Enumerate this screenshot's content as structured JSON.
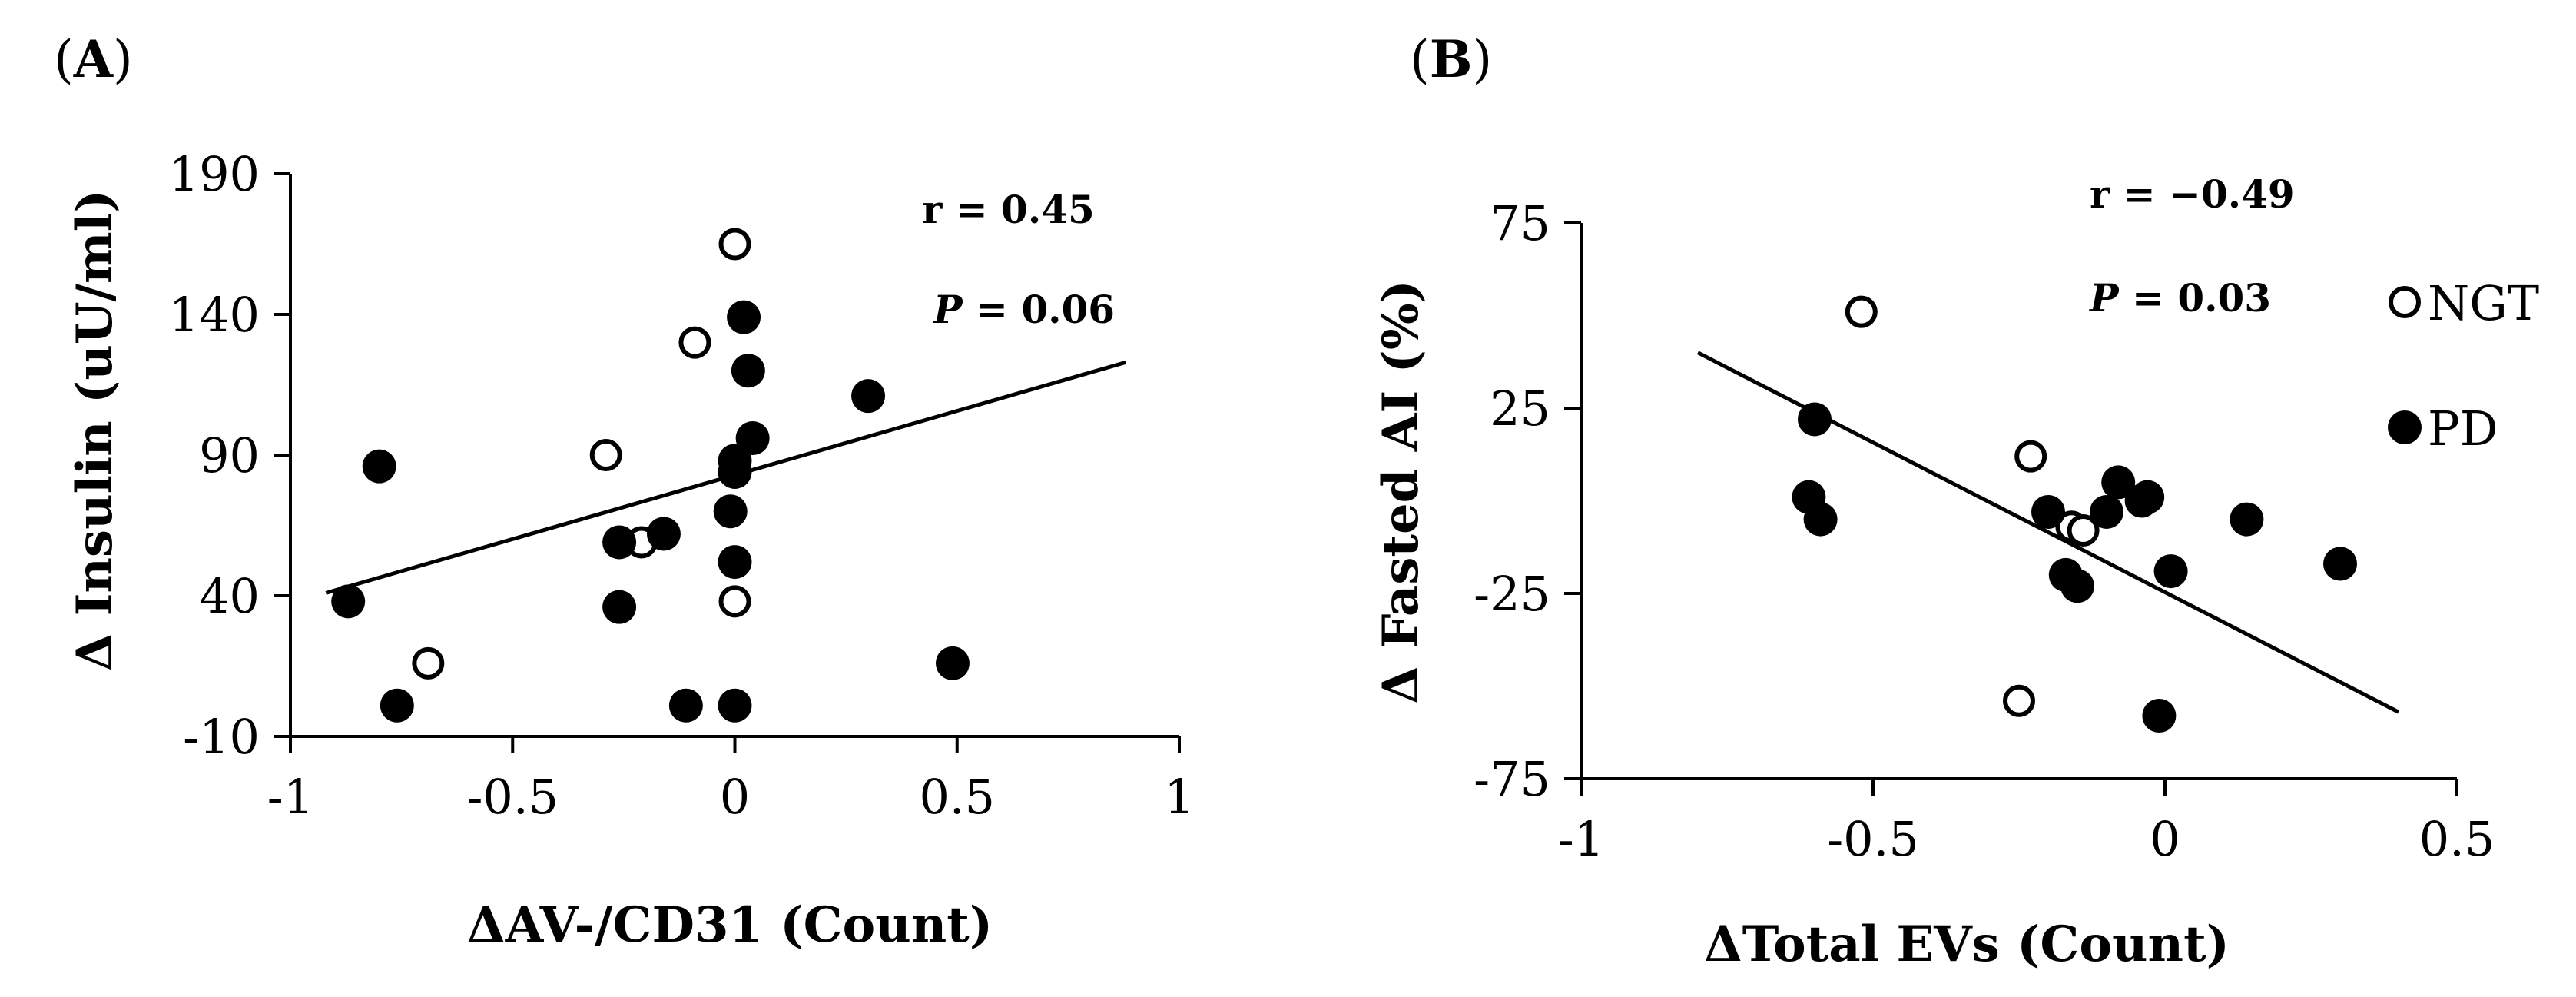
{
  "chart_data": [
    {
      "type": "scatter",
      "panel_label": "A",
      "title": "",
      "xlabel": "ΔAV-/CD31 (Count)",
      "ylabel": "Δ Insulin (uU/ml)",
      "xlim": [
        -1,
        1
      ],
      "ylim": [
        -10,
        190
      ],
      "xticks": [
        -1,
        -0.5,
        0,
        0.5,
        1
      ],
      "xtick_labels": [
        "-1",
        "-0.5",
        "0",
        "0.5",
        "1"
      ],
      "yticks": [
        -10,
        40,
        90,
        140,
        190
      ],
      "ytick_labels": [
        "-10",
        "40",
        "90",
        "140",
        "190"
      ],
      "annotations": {
        "r_text": "r = 0.45",
        "p_letter": "P",
        "p_rest": " = 0.06"
      },
      "trendline": {
        "x": [
          -0.92,
          0.88
        ],
        "y": [
          41,
          123
        ]
      },
      "series": [
        {
          "name": "NGT",
          "fill": "#ffffff",
          "points": [
            [
              0.0,
              165
            ],
            [
              -0.09,
              130
            ],
            [
              -0.29,
              90
            ],
            [
              -0.21,
              59
            ],
            [
              0.0,
              38
            ],
            [
              -0.69,
              16
            ]
          ]
        },
        {
          "name": "PD",
          "fill": "#000000",
          "points": [
            [
              0.02,
              139
            ],
            [
              0.03,
              120
            ],
            [
              0.3,
              111
            ],
            [
              0.04,
              96
            ],
            [
              0.0,
              88
            ],
            [
              0.0,
              84
            ],
            [
              -0.8,
              86
            ],
            [
              -0.01,
              70
            ],
            [
              -0.16,
              62
            ],
            [
              -0.26,
              59
            ],
            [
              0.0,
              52
            ],
            [
              -0.26,
              36
            ],
            [
              -0.87,
              38
            ],
            [
              0.49,
              16
            ],
            [
              -0.76,
              1
            ],
            [
              -0.11,
              1
            ],
            [
              0.0,
              1
            ]
          ]
        }
      ]
    },
    {
      "type": "scatter",
      "panel_label": "B",
      "title": "",
      "xlabel": "ΔTotal EVs (Count)",
      "ylabel": "Δ Fasted AI (%)",
      "xlim": [
        -1,
        0.5
      ],
      "ylim": [
        -75,
        75
      ],
      "xticks": [
        -1,
        -0.5,
        0,
        0.5
      ],
      "xtick_labels": [
        "-1",
        "-0.5",
        "0",
        "0.5"
      ],
      "yticks": [
        -75,
        -25,
        25,
        75
      ],
      "ytick_labels": [
        "-75",
        "-25",
        "25",
        "75"
      ],
      "annotations": {
        "r_text": "r = −0.49",
        "p_letter": "P",
        "p_rest": " = 0.03"
      },
      "legend": {
        "position": "top-right",
        "entries": [
          {
            "label": "NGT",
            "fill": "#ffffff"
          },
          {
            "label": "PD",
            "fill": "#000000"
          }
        ]
      },
      "trendline": {
        "x": [
          -0.8,
          0.4
        ],
        "y": [
          40,
          -57
        ]
      },
      "series": [
        {
          "name": "NGT",
          "fill": "#ffffff",
          "points": [
            [
              -0.52,
              51
            ],
            [
              -0.23,
              12
            ],
            [
              -0.16,
              -7
            ],
            [
              -0.14,
              -8
            ],
            [
              -0.25,
              -54
            ]
          ]
        },
        {
          "name": "PD",
          "fill": "#000000",
          "points": [
            [
              -0.6,
              22
            ],
            [
              -0.61,
              1
            ],
            [
              -0.59,
              -5
            ],
            [
              -0.08,
              5
            ],
            [
              -0.03,
              1
            ],
            [
              -0.04,
              0
            ],
            [
              -0.2,
              -3
            ],
            [
              -0.1,
              -3
            ],
            [
              0.14,
              -5
            ],
            [
              -0.17,
              -20
            ],
            [
              -0.15,
              -23
            ],
            [
              0.01,
              -19
            ],
            [
              0.3,
              -17
            ],
            [
              -0.01,
              -58
            ]
          ]
        }
      ]
    }
  ]
}
